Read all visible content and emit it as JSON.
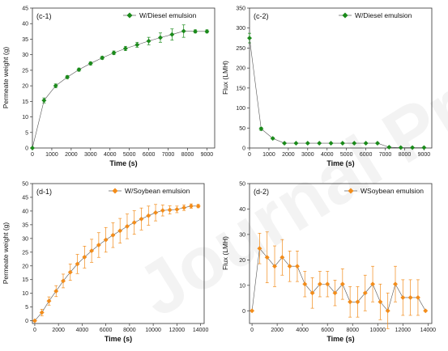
{
  "watermark": "Journal Pre-proofs",
  "chart_data": [
    {
      "id": "c1",
      "panel_label": "(c-1)",
      "type": "line",
      "xlabel": "Time (s)",
      "ylabel": "Permeate weight (g)",
      "xlim": [
        0,
        9400
      ],
      "ylim": [
        0,
        45
      ],
      "xticks": [
        0,
        1000,
        2000,
        3000,
        4000,
        5000,
        6000,
        7000,
        8000,
        9000
      ],
      "yticks": [
        0,
        5,
        10,
        15,
        20,
        25,
        30,
        35,
        40,
        45
      ],
      "marker": "diamond",
      "color": "#1a8a1a",
      "legend_position": "top-right",
      "series": [
        {
          "name": "W/Diesel emulsion",
          "x": [
            0,
            600,
            1200,
            1800,
            2400,
            3000,
            3600,
            4200,
            4800,
            5400,
            6000,
            6600,
            7200,
            7800,
            8400,
            9000
          ],
          "y": [
            0,
            15.3,
            20,
            22.8,
            25.2,
            27.2,
            29,
            30.6,
            32,
            33.2,
            34.4,
            35.5,
            36.5,
            37.6,
            37.5,
            37.5
          ],
          "err": [
            0,
            0.8,
            0.6,
            0.5,
            0.5,
            0.5,
            0.5,
            0.6,
            0.7,
            0.8,
            1.2,
            1.5,
            1.8,
            2,
            0.5,
            0.5
          ]
        }
      ]
    },
    {
      "id": "c2",
      "panel_label": "(c-2)",
      "type": "line",
      "xlabel": "Time (s)",
      "ylabel": "Flux (LMH)",
      "xlim": [
        0,
        9400
      ],
      "ylim": [
        0,
        350
      ],
      "xticks": [
        0,
        1000,
        2000,
        3000,
        4000,
        5000,
        6000,
        7000,
        8000,
        9000
      ],
      "yticks": [
        0,
        50,
        100,
        150,
        200,
        250,
        300,
        350
      ],
      "marker": "diamond",
      "color": "#1a8a1a",
      "legend_position": "top-right",
      "series": [
        {
          "name": "W/Diesel emulsion",
          "x": [
            0,
            600,
            1200,
            1800,
            2400,
            3000,
            3600,
            4200,
            4800,
            5400,
            6000,
            6600,
            7200,
            7800,
            8400,
            9000
          ],
          "y": [
            275,
            48,
            24,
            12,
            12,
            12,
            12,
            12,
            12,
            12,
            12,
            12,
            2,
            1,
            1,
            1
          ],
          "err": [
            12,
            4,
            2,
            1,
            1,
            1,
            1,
            1,
            1,
            1,
            1,
            1,
            1,
            1,
            1,
            1
          ]
        }
      ]
    },
    {
      "id": "d1",
      "panel_label": "(d-1)",
      "type": "line",
      "xlabel": "Time (s)",
      "ylabel": "Permeate weight (g)",
      "xlim": [
        -200,
        14300
      ],
      "ylim": [
        -1,
        50
      ],
      "xticks": [
        0,
        2000,
        4000,
        6000,
        8000,
        10000,
        12000,
        14000
      ],
      "yticks": [
        0,
        5,
        10,
        15,
        20,
        25,
        30,
        35,
        40,
        45,
        50
      ],
      "marker": "diamond",
      "color": "#f28c1a",
      "legend_position": "top-right",
      "series": [
        {
          "name": "W/Soybean emulsion",
          "x": [
            0,
            600,
            1200,
            1800,
            2400,
            3000,
            3600,
            4200,
            4800,
            5400,
            6000,
            6600,
            7200,
            7800,
            8400,
            9000,
            9600,
            10200,
            10800,
            11400,
            12000,
            12600,
            13200,
            13800
          ],
          "y": [
            0,
            3,
            7.2,
            10.8,
            14.5,
            17.7,
            20.7,
            23.2,
            25.5,
            27.6,
            29.5,
            31.2,
            32.8,
            34.4,
            35.8,
            37.1,
            38.3,
            39.4,
            40.2,
            40.4,
            40.6,
            41.2,
            41.8,
            41.8
          ],
          "err": [
            0,
            1.2,
            1.5,
            2,
            2.5,
            3,
            3.5,
            4,
            4.2,
            4.5,
            4.5,
            4.5,
            4.5,
            4.5,
            4.3,
            4,
            3.5,
            3,
            2,
            1.5,
            1.2,
            1,
            0.8,
            0.6
          ]
        }
      ]
    },
    {
      "id": "d2",
      "panel_label": "(d-2)",
      "type": "line",
      "xlabel": "Time (s)",
      "ylabel": "Flux (LMH)",
      "xlim": [
        -200,
        14300
      ],
      "ylim": [
        -5,
        50
      ],
      "xticks": [
        0,
        2000,
        4000,
        6000,
        8000,
        10000,
        12000,
        14000
      ],
      "yticks": [
        0,
        10,
        20,
        30,
        40,
        50
      ],
      "marker": "diamond",
      "color": "#f28c1a",
      "legend_position": "top-right",
      "series": [
        {
          "name": "WSoybean emulsion",
          "x": [
            0,
            600,
            1200,
            1800,
            2400,
            3000,
            3600,
            4200,
            4800,
            5400,
            6000,
            6600,
            7200,
            7800,
            8400,
            9000,
            9600,
            10200,
            10800,
            11400,
            12000,
            12600,
            13200,
            13800
          ],
          "y": [
            0,
            24.5,
            21,
            17.5,
            21,
            17.5,
            17.5,
            10.5,
            7,
            10.5,
            10.5,
            7,
            10.5,
            3.5,
            3.5,
            7,
            10.5,
            3.5,
            0,
            10.5,
            5.2,
            5.2,
            5.2,
            0
          ],
          "err": [
            0,
            6,
            10,
            8,
            7,
            6,
            6,
            5,
            6,
            5,
            5,
            5,
            6,
            6,
            6,
            7,
            7,
            7,
            7,
            7,
            7,
            7,
            7,
            0
          ]
        }
      ]
    }
  ]
}
